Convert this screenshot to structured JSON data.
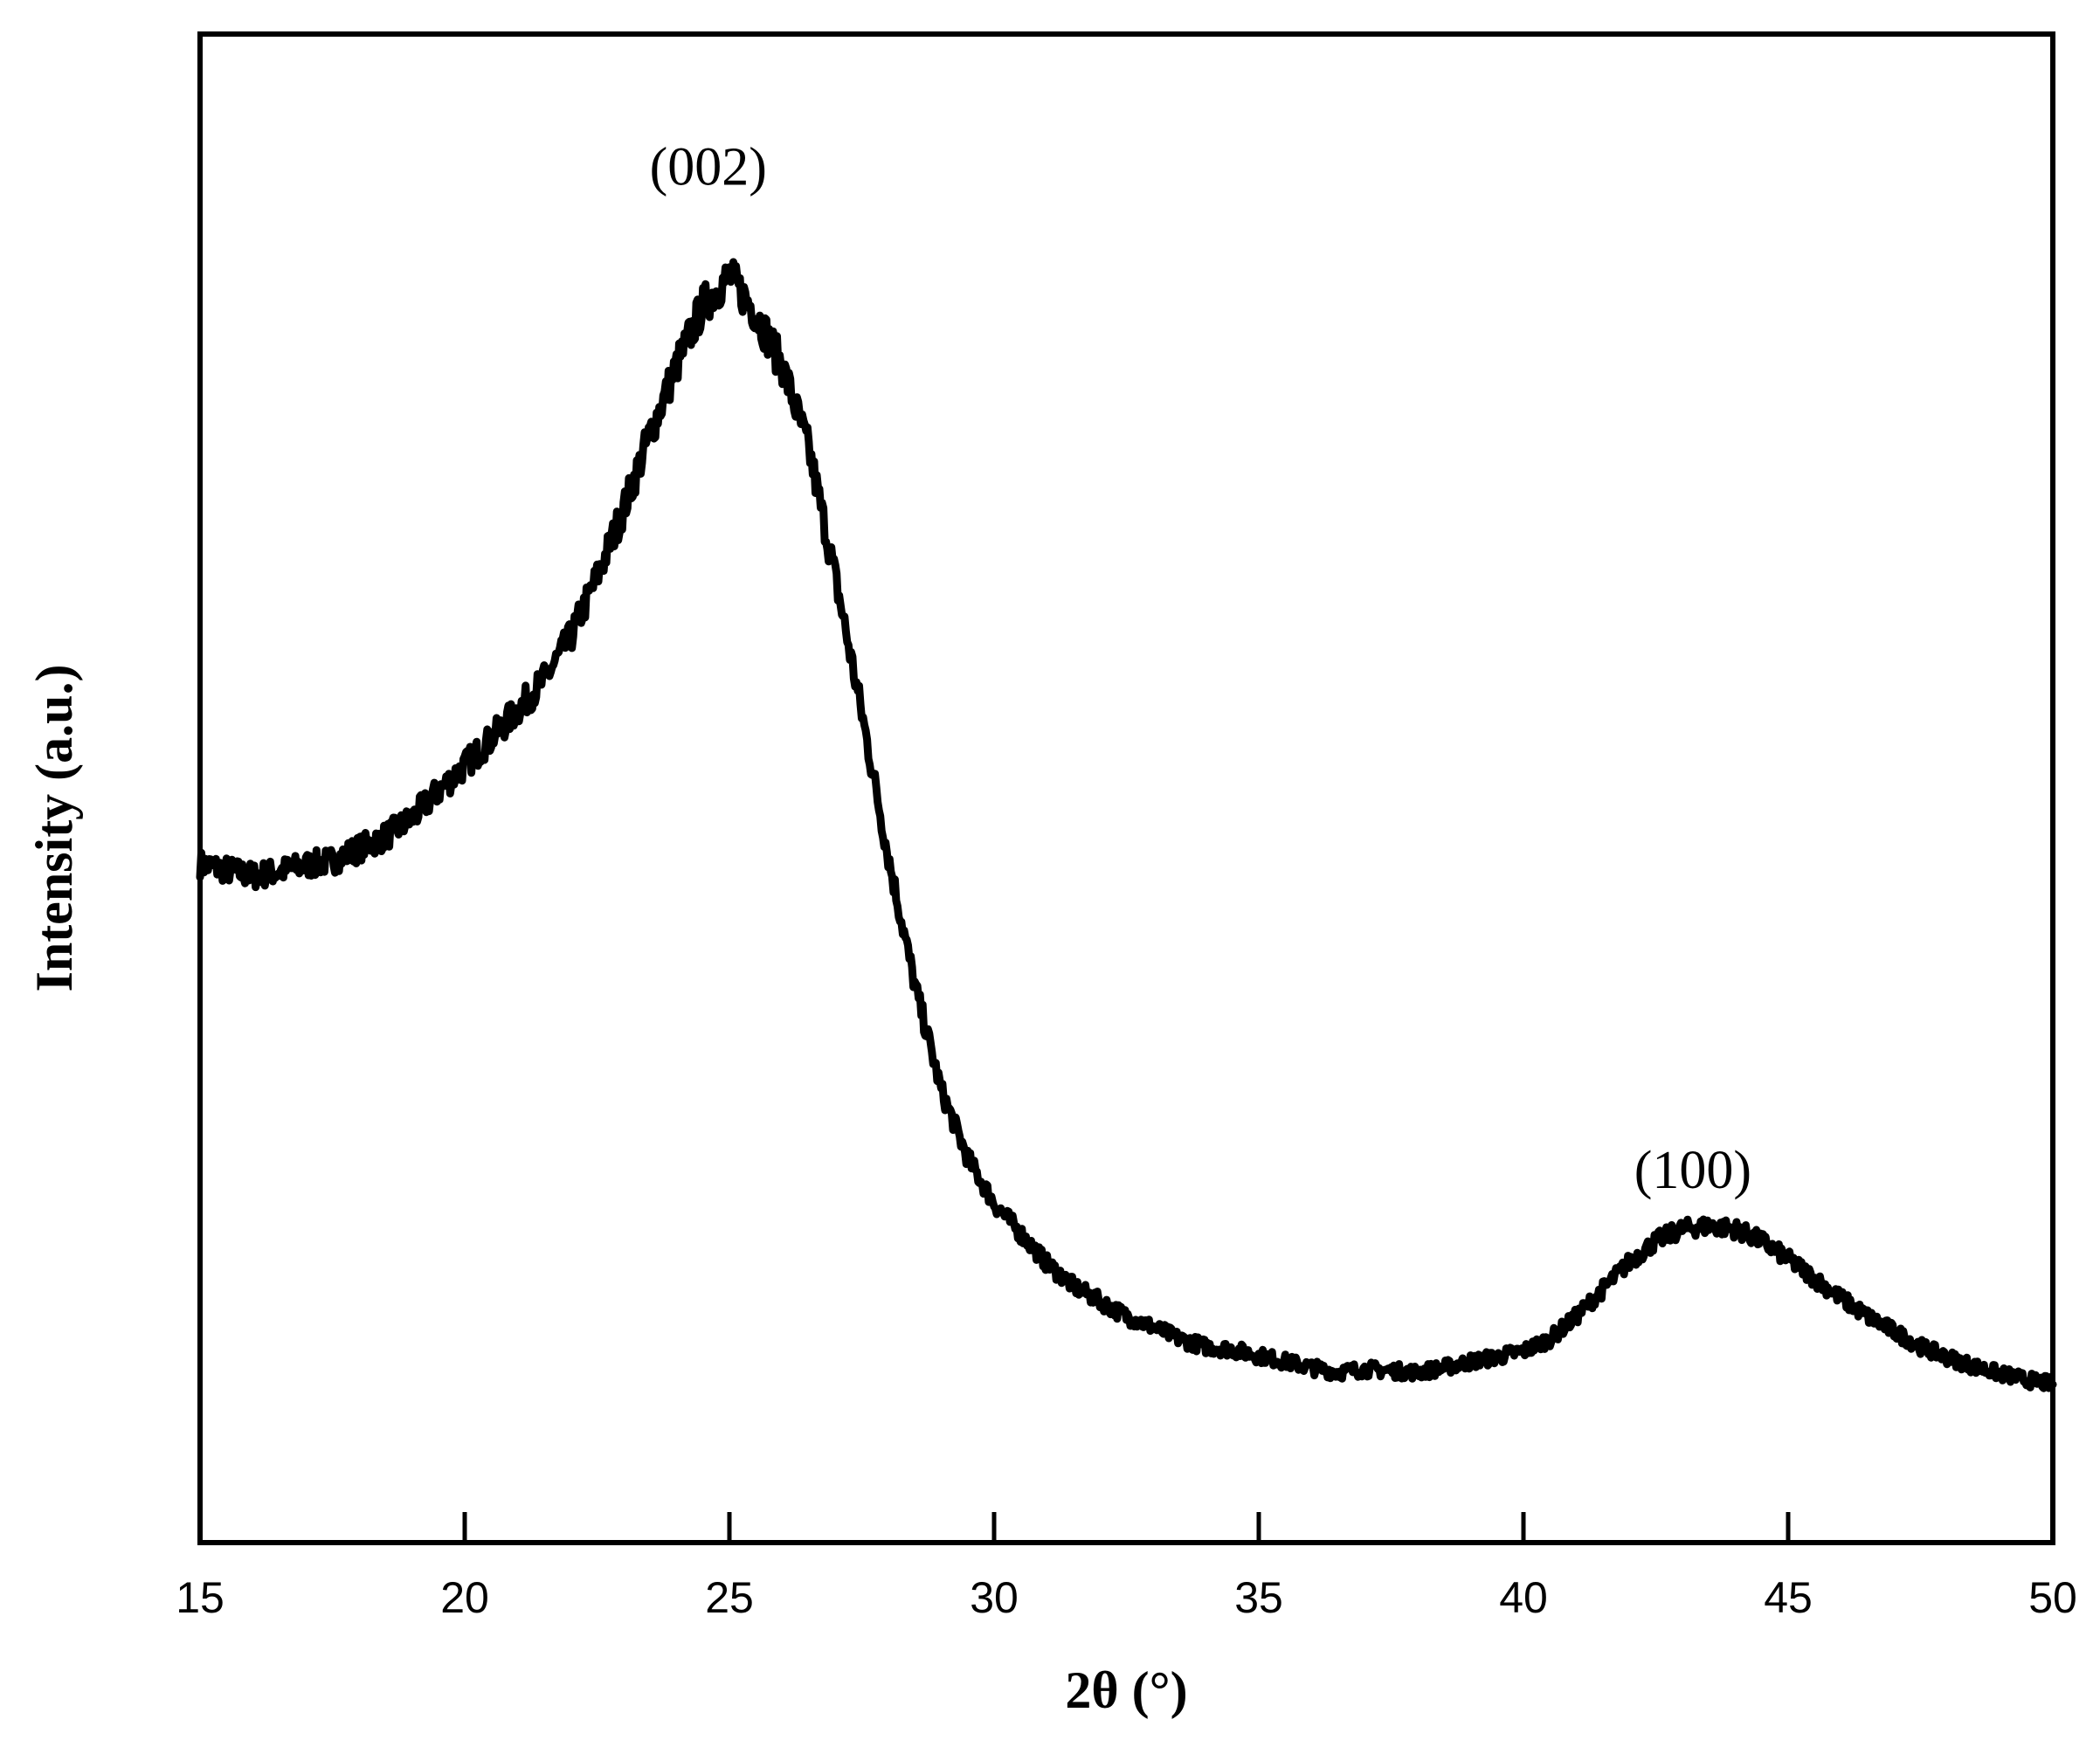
{
  "chart_data": {
    "type": "line",
    "title": "",
    "xlabel": "2θ (°)",
    "ylabel": "Intensity (a.u.)",
    "xlim": [
      15,
      50
    ],
    "ylim": [
      0,
      100
    ],
    "y_ticks_shown": false,
    "x_ticks": [
      15,
      20,
      25,
      30,
      35,
      40,
      45,
      50
    ],
    "x_tick_labels": [
      "15",
      "20",
      "25",
      "30",
      "35",
      "40",
      "45",
      "50"
    ],
    "grid": false,
    "legend": "none",
    "line_color": "#000000",
    "annotations": [
      {
        "text": "(002)",
        "x": 24.6,
        "y": 90.0
      },
      {
        "text": "(100)",
        "x": 43.2,
        "y": 23.5
      }
    ],
    "series": [
      {
        "name": "",
        "x": [
          15.0,
          15.5,
          16.0,
          16.5,
          17.0,
          17.5,
          18.0,
          18.5,
          19.0,
          19.5,
          20.0,
          20.5,
          21.0,
          21.5,
          22.0,
          22.5,
          23.0,
          23.5,
          24.0,
          24.5,
          25.0,
          25.5,
          26.0,
          26.5,
          27.0,
          27.5,
          28.0,
          28.5,
          29.0,
          29.5,
          30.0,
          30.5,
          31.0,
          31.5,
          32.0,
          32.5,
          33.0,
          33.5,
          34.0,
          34.5,
          35.0,
          35.5,
          36.0,
          36.5,
          37.0,
          37.5,
          38.0,
          38.5,
          39.0,
          39.5,
          40.0,
          40.5,
          41.0,
          41.5,
          42.0,
          42.5,
          43.0,
          43.5,
          44.0,
          44.5,
          45.0,
          45.5,
          46.0,
          46.5,
          47.0,
          47.5,
          48.0,
          48.5,
          49.0,
          49.5,
          50.0
        ],
        "y": [
          45.0,
          44.6,
          44.2,
          44.5,
          44.9,
          45.2,
          46.0,
          46.8,
          48.0,
          49.8,
          51.5,
          53.3,
          55.2,
          57.2,
          60.0,
          64.0,
          68.5,
          73.5,
          78.0,
          82.0,
          84.0,
          81.5,
          78.0,
          72.5,
          64.0,
          55.0,
          45.5,
          37.0,
          30.0,
          25.5,
          22.5,
          20.5,
          18.5,
          17.0,
          16.0,
          15.0,
          14.3,
          13.5,
          13.0,
          12.8,
          12.4,
          12.0,
          11.6,
          11.3,
          11.5,
          11.4,
          11.3,
          11.6,
          12.0,
          12.3,
          12.7,
          13.5,
          15.0,
          16.8,
          18.6,
          20.0,
          20.8,
          21.0,
          20.8,
          20.0,
          18.8,
          17.5,
          16.2,
          15.0,
          14.0,
          13.0,
          12.3,
          11.7,
          11.2,
          10.8,
          10.5
        ]
      }
    ]
  }
}
